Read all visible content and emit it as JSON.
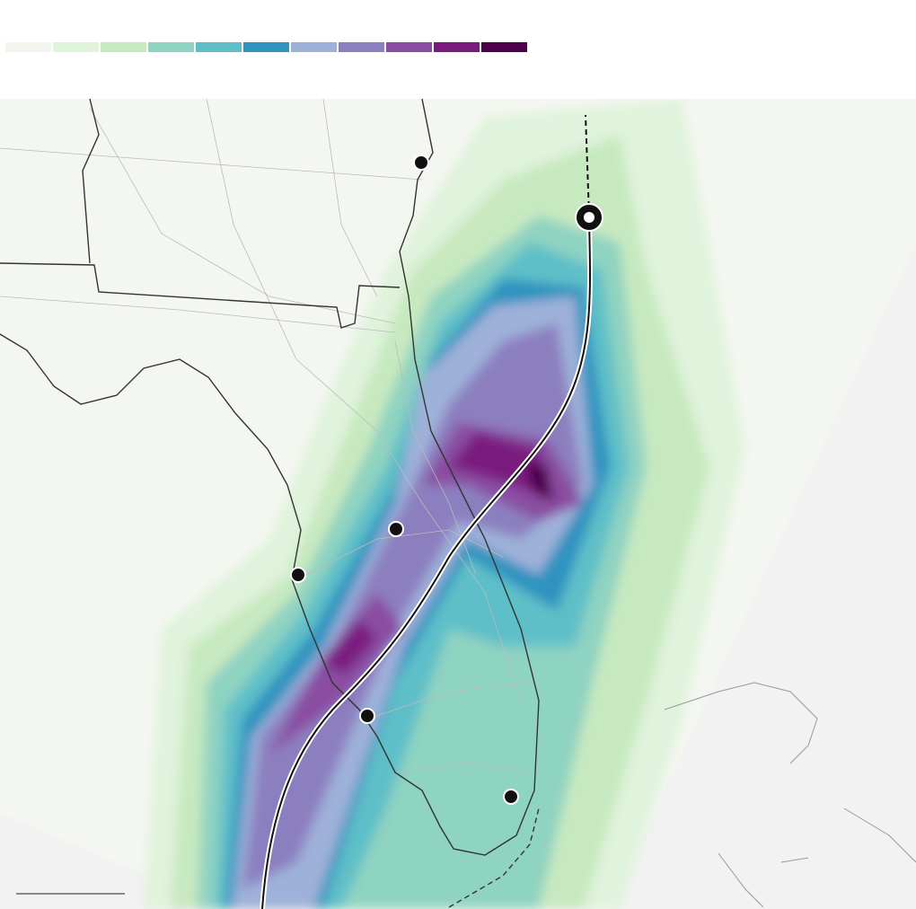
{
  "legend": {
    "colors": [
      "#f3f6ee",
      "#e0f3db",
      "#c7e9c0",
      "#8fd3c1",
      "#5fbfc8",
      "#2f93c0",
      "#9eb1d9",
      "#8c7fbf",
      "#8a4ea2",
      "#7a1a7f",
      "#4d004b"
    ]
  }
}
